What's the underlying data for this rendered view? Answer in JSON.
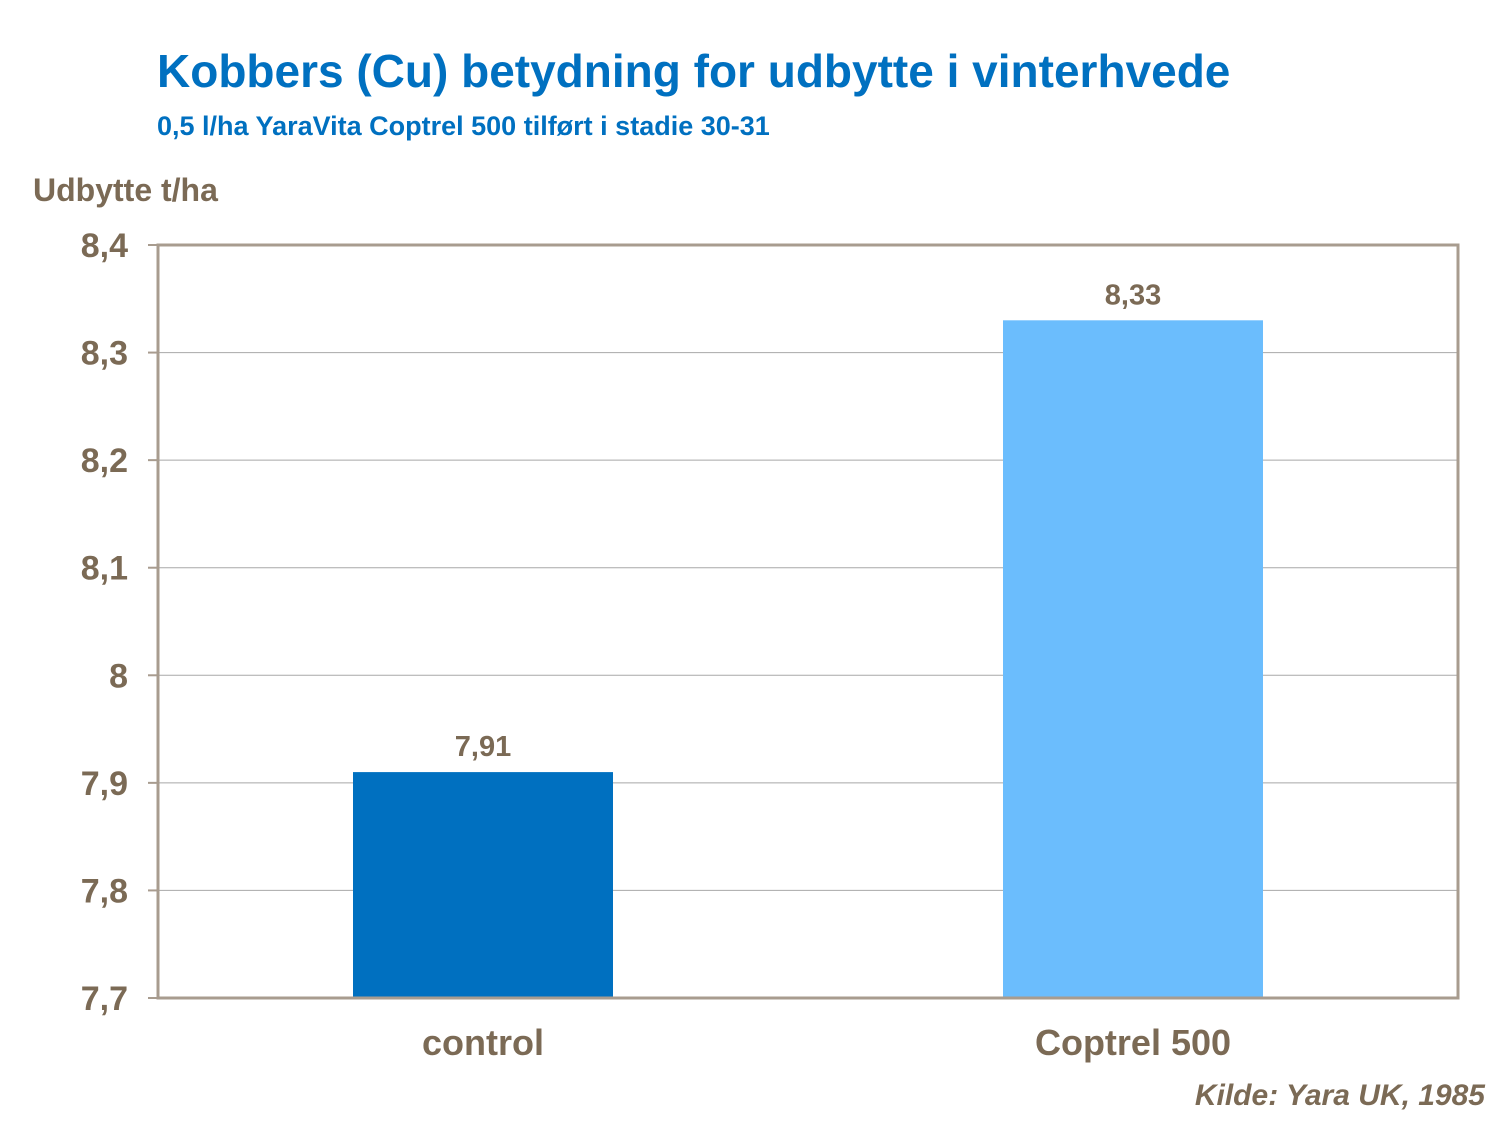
{
  "header": {
    "title": "Kobbers (Cu) betydning for udbytte i vinterhvede",
    "subtitle": "0,5 l/ha YaraVita Coptrel 500 tilført i stadie 30-31"
  },
  "footer": {
    "source": "Kilde: Yara UK, 1985"
  },
  "chart_data": {
    "type": "bar",
    "title": "Kobbers (Cu) betydning for udbytte i vinterhvede",
    "subtitle": "0,5 l/ha YaraVita Coptrel 500 tilført i stadie 30-31",
    "ylabel": "Udbytte t/ha",
    "xlabel": "",
    "categories": [
      "control",
      "Coptrel 500"
    ],
    "values": [
      7.91,
      8.33
    ],
    "value_labels": [
      "7,91",
      "8,33"
    ],
    "ylim": [
      7.7,
      8.4
    ],
    "yticks": [
      7.7,
      7.8,
      7.9,
      8.0,
      8.1,
      8.2,
      8.3,
      8.4
    ],
    "ytick_labels": [
      "7,7",
      "7,8",
      "7,9",
      "8",
      "8,1",
      "8,2",
      "8,3",
      "8,4"
    ],
    "bar_colors": [
      "#0070c0",
      "#6bbdfd"
    ],
    "grid": true,
    "legend": "none"
  }
}
